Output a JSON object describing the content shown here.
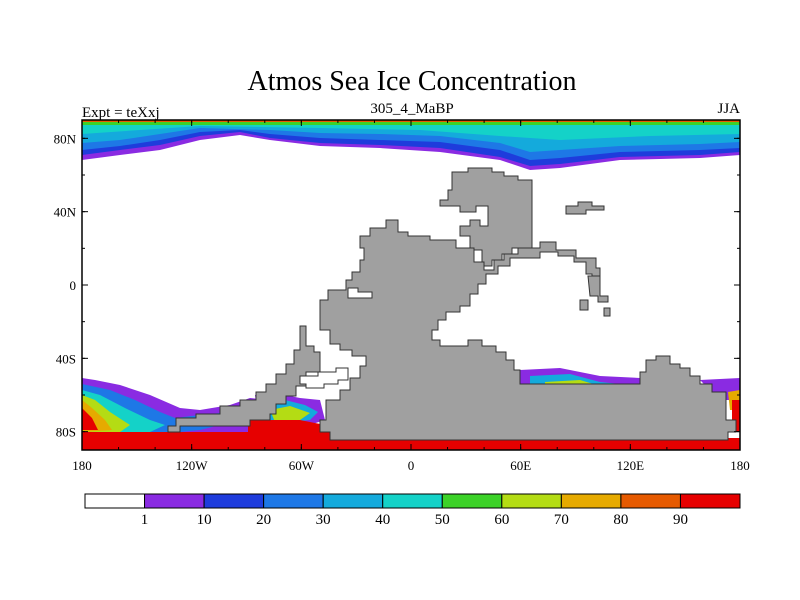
{
  "chart_data": {
    "type": "heatmap",
    "title": "Atmos Sea Ice Concentration",
    "subtitle": "305_4_MaBP",
    "left_label": "Expt = teXxj",
    "right_label": "JJA",
    "x_ticks": [
      "180",
      "120W",
      "60W",
      "0",
      "60E",
      "120E",
      "180"
    ],
    "x_tick_values": [
      -180,
      -120,
      -60,
      0,
      60,
      120,
      180
    ],
    "y_ticks": [
      "80N",
      "40N",
      "0",
      "40S",
      "80S"
    ],
    "y_tick_values": [
      80,
      40,
      0,
      -40,
      -80
    ],
    "xlim": [
      -180,
      180
    ],
    "ylim": [
      -90,
      90
    ],
    "colorbar": {
      "labels": [
        "1",
        "10",
        "20",
        "30",
        "40",
        "50",
        "60",
        "70",
        "80",
        "90"
      ],
      "colors": [
        "#ffffff",
        "#8a2be2",
        "#1e3cdc",
        "#1e78e6",
        "#14aadc",
        "#14d2c8",
        "#3cd228",
        "#b4dc14",
        "#e6aa00",
        "#e65a00",
        "#e60000"
      ]
    },
    "land_color": "#a0a0a0"
  }
}
